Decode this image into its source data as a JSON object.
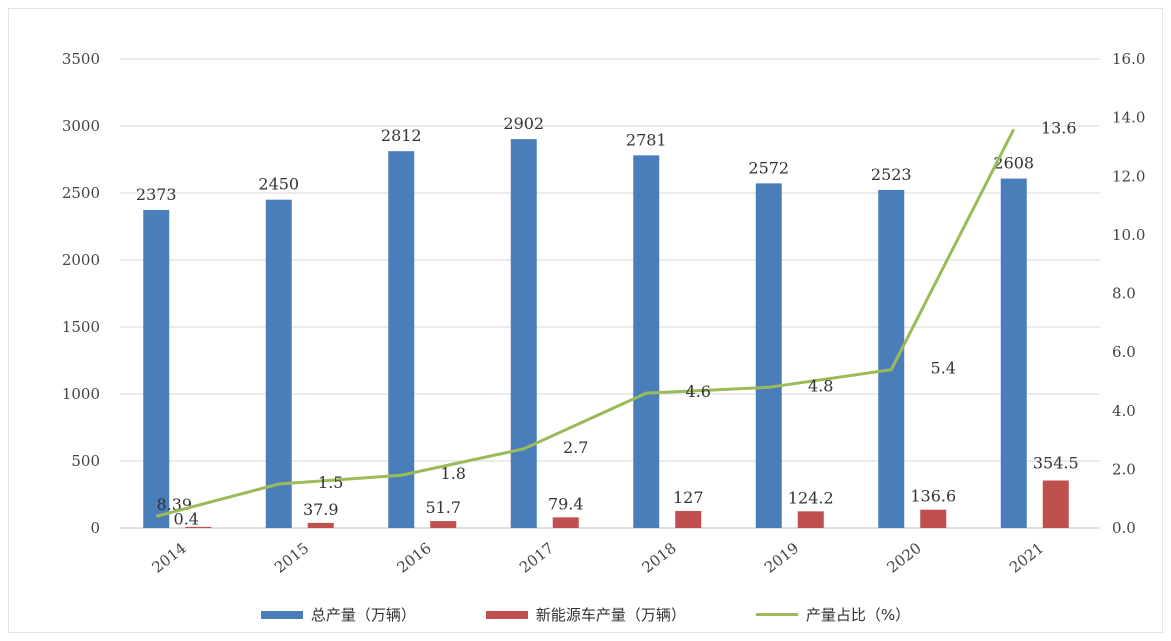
{
  "chart_data": {
    "type": "bar",
    "categories": [
      "2014",
      "2015",
      "2016",
      "2017",
      "2018",
      "2019",
      "2020",
      "2021"
    ],
    "series": [
      {
        "name": "总产量（万辆）",
        "type": "bar",
        "axis": "left",
        "color": "#4a7ebb",
        "values": [
          2373,
          2450,
          2812,
          2902,
          2781,
          2572,
          2523,
          2608
        ],
        "labels": [
          "2373",
          "2450",
          "2812",
          "2902",
          "2781",
          "2572",
          "2523",
          "2608"
        ]
      },
      {
        "name": "新能源车产量（万辆）",
        "type": "bar",
        "axis": "left",
        "color": "#c0504d",
        "values": [
          8.39,
          37.9,
          51.7,
          79.4,
          127,
          124.2,
          136.6,
          354.5
        ],
        "labels": [
          "8.39",
          "37.9",
          "51.7",
          "79.4",
          "127",
          "124.2",
          "136.6",
          "354.5"
        ]
      },
      {
        "name": "产量占比（%）",
        "type": "line",
        "axis": "right",
        "color": "#9bbb59",
        "values": [
          0.4,
          1.5,
          1.8,
          2.7,
          4.6,
          4.8,
          5.4,
          13.6
        ],
        "labels": [
          "0.4",
          "1.5",
          "1.8",
          "2.7",
          "4.6",
          "4.8",
          "5.4",
          "13.6"
        ]
      }
    ],
    "y_left": {
      "min": 0,
      "max": 3500,
      "step": 500,
      "ticks": [
        "0",
        "500",
        "1000",
        "1500",
        "2000",
        "2500",
        "3000",
        "3500"
      ]
    },
    "y_right": {
      "min": 0,
      "max": 16,
      "step": 2,
      "ticks": [
        "0.0",
        "2.0",
        "4.0",
        "6.0",
        "8.0",
        "10.0",
        "12.0",
        "14.0",
        "16.0"
      ]
    },
    "grid": true,
    "legend_position": "bottom"
  }
}
